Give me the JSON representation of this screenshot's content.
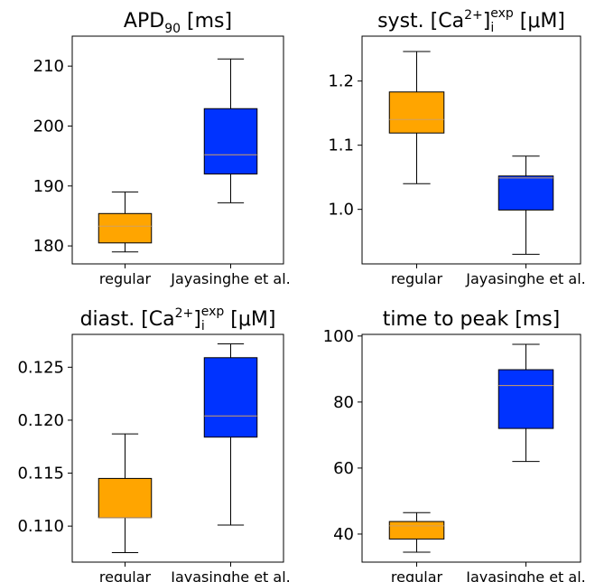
{
  "colors": {
    "regular": "#FFA500",
    "jayasinghe": "#0033FF",
    "median": "#D2A060"
  },
  "chart_data": [
    {
      "type": "box",
      "title": {
        "main": "APD",
        "sub": "90",
        "post": " [ms]"
      },
      "categories": [
        "regular",
        "Jayasinghe et al."
      ],
      "yticks": [
        "180",
        "190",
        "200",
        "210"
      ],
      "ylim": [
        177,
        215
      ],
      "boxes": [
        {
          "whislo": 179,
          "q1": 180.5,
          "med": 183.3,
          "q3": 185.4,
          "whishi": 189
        },
        {
          "whislo": 187.2,
          "q1": 192,
          "med": 195.2,
          "q3": 202.9,
          "whishi": 211.2
        }
      ]
    },
    {
      "type": "box",
      "title": {
        "main": "syst. [Ca",
        "sup1": "2+",
        "mid": "]",
        "sub": "i",
        "sup2": "exp",
        "post": " [μM]"
      },
      "categories": [
        "regular",
        "Jayasinghe et al."
      ],
      "yticks": [
        "1.0",
        "1.1",
        "1.2"
      ],
      "ylim": [
        0.915,
        1.27
      ],
      "boxes": [
        {
          "whislo": 1.04,
          "q1": 1.119,
          "med": 1.14,
          "q3": 1.183,
          "whishi": 1.246
        },
        {
          "whislo": 0.93,
          "q1": 0.999,
          "med": 1.049,
          "q3": 1.052,
          "whishi": 1.083
        }
      ]
    },
    {
      "type": "box",
      "title": {
        "main": "diast. [Ca",
        "sup1": "2+",
        "mid": "]",
        "sub": "i",
        "sup2": "exp",
        "post": " [μM]"
      },
      "categories": [
        "regular",
        "Jayasinghe et al."
      ],
      "yticks": [
        "0.110",
        "0.115",
        "0.120",
        "0.125"
      ],
      "ylim": [
        0.1066,
        0.1281
      ],
      "boxes": [
        {
          "whislo": 0.1075,
          "q1": 0.1108,
          "med": 0.1108,
          "q3": 0.1145,
          "whishi": 0.1187
        },
        {
          "whislo": 0.1101,
          "q1": 0.1184,
          "med": 0.1204,
          "q3": 0.1259,
          "whishi": 0.1272
        }
      ]
    },
    {
      "type": "box",
      "title": {
        "main": "time to peak [ms]"
      },
      "categories": [
        "regular",
        "Jayasinghe et al."
      ],
      "yticks": [
        "40",
        "60",
        "80",
        "100"
      ],
      "ylim": [
        31.5,
        100.5
      ],
      "boxes": [
        {
          "whislo": 34.5,
          "q1": 38.5,
          "med": 42.5,
          "q3": 43.8,
          "whishi": 46.5
        },
        {
          "whislo": 62,
          "q1": 72,
          "med": 85,
          "q3": 89.8,
          "whishi": 97.5
        }
      ]
    }
  ]
}
